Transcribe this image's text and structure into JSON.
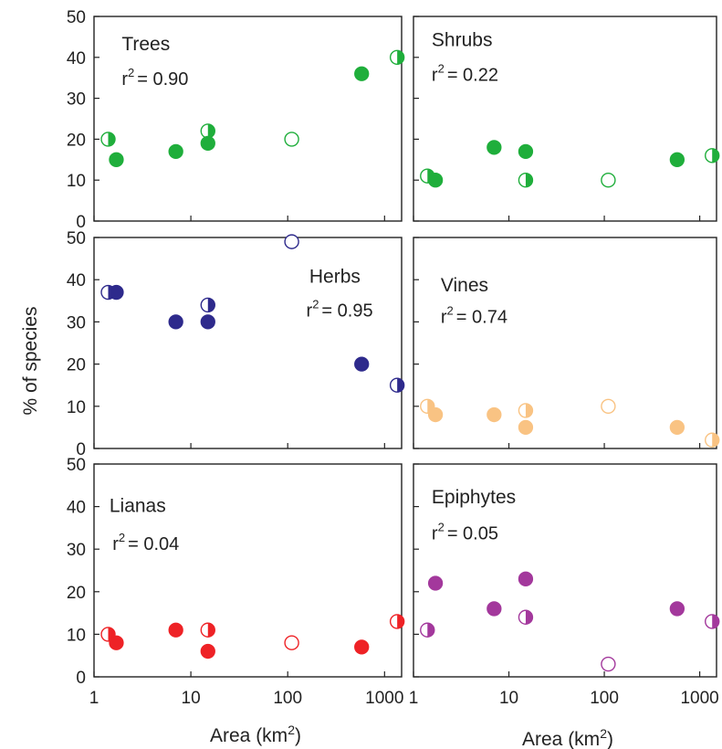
{
  "figure": {
    "ylabel": "% of species",
    "xlabel_left": "Area (km",
    "xlabel_right": "Area (km",
    "xlabel_superscript": "2",
    "xlabel_close": ")"
  },
  "chart_data": [
    {
      "type": "scatter",
      "title": "Trees",
      "r2_label": "r",
      "r2_superscript": "2",
      "r2_value": "= 0.90",
      "color": "#1fae3b",
      "xscale": "log",
      "xlim": [
        1,
        1500
      ],
      "ylim": [
        0,
        50
      ],
      "xticks": [
        "1",
        "10",
        "100",
        "1000"
      ],
      "yticks": [
        "0",
        "10",
        "20",
        "30",
        "40",
        "50"
      ],
      "show_xtick_labels": false,
      "show_ytick_labels": true,
      "points": [
        {
          "x": 1.4,
          "y": 20,
          "fill": "half"
        },
        {
          "x": 1.7,
          "y": 15,
          "fill": "full"
        },
        {
          "x": 7,
          "y": 17,
          "fill": "full"
        },
        {
          "x": 15,
          "y": 22,
          "fill": "half"
        },
        {
          "x": 15,
          "y": 19,
          "fill": "full"
        },
        {
          "x": 110,
          "y": 20,
          "fill": "open"
        },
        {
          "x": 580,
          "y": 36,
          "fill": "full"
        },
        {
          "x": 1350,
          "y": 40,
          "fill": "half"
        }
      ]
    },
    {
      "type": "scatter",
      "title": "Shrubs",
      "r2_label": "r",
      "r2_superscript": "2",
      "r2_value": "= 0.22",
      "color": "#1fae3b",
      "xscale": "log",
      "xlim": [
        1,
        1500
      ],
      "ylim": [
        0,
        50
      ],
      "xticks": [
        "1",
        "10",
        "100",
        "1000"
      ],
      "yticks": [
        "0",
        "10",
        "20",
        "30",
        "40",
        "50"
      ],
      "show_xtick_labels": false,
      "show_ytick_labels": false,
      "points": [
        {
          "x": 1.4,
          "y": 11,
          "fill": "half"
        },
        {
          "x": 1.7,
          "y": 10,
          "fill": "full"
        },
        {
          "x": 7,
          "y": 18,
          "fill": "full"
        },
        {
          "x": 15,
          "y": 17,
          "fill": "full"
        },
        {
          "x": 15,
          "y": 10,
          "fill": "half"
        },
        {
          "x": 110,
          "y": 10,
          "fill": "open"
        },
        {
          "x": 580,
          "y": 15,
          "fill": "full"
        },
        {
          "x": 1350,
          "y": 16,
          "fill": "half"
        }
      ]
    },
    {
      "type": "scatter",
      "title": "Herbs",
      "r2_label": "r",
      "r2_superscript": "2",
      "r2_value": "= 0.95",
      "color": "#2e2a8c",
      "xscale": "log",
      "xlim": [
        1,
        1500
      ],
      "ylim": [
        0,
        50
      ],
      "xticks": [
        "1",
        "10",
        "100",
        "1000"
      ],
      "yticks": [
        "0",
        "10",
        "20",
        "30",
        "40",
        "50"
      ],
      "show_xtick_labels": false,
      "show_ytick_labels": true,
      "points": [
        {
          "x": 1.4,
          "y": 37,
          "fill": "half"
        },
        {
          "x": 1.7,
          "y": 37,
          "fill": "full"
        },
        {
          "x": 7,
          "y": 30,
          "fill": "full"
        },
        {
          "x": 15,
          "y": 34,
          "fill": "half"
        },
        {
          "x": 15,
          "y": 30,
          "fill": "full"
        },
        {
          "x": 110,
          "y": 49,
          "fill": "open"
        },
        {
          "x": 580,
          "y": 20,
          "fill": "full"
        },
        {
          "x": 1350,
          "y": 15,
          "fill": "half"
        }
      ]
    },
    {
      "type": "scatter",
      "title": "Vines",
      "r2_label": "r",
      "r2_superscript": "2",
      "r2_value": "= 0.74",
      "color": "#f9c383",
      "xscale": "log",
      "xlim": [
        1,
        1500
      ],
      "ylim": [
        0,
        50
      ],
      "xticks": [
        "1",
        "10",
        "100",
        "1000"
      ],
      "yticks": [
        "0",
        "10",
        "20",
        "30",
        "40",
        "50"
      ],
      "show_xtick_labels": false,
      "show_ytick_labels": false,
      "points": [
        {
          "x": 1.4,
          "y": 10,
          "fill": "half"
        },
        {
          "x": 1.7,
          "y": 8,
          "fill": "full"
        },
        {
          "x": 7,
          "y": 8,
          "fill": "full"
        },
        {
          "x": 15,
          "y": 9,
          "fill": "half"
        },
        {
          "x": 15,
          "y": 5,
          "fill": "full"
        },
        {
          "x": 110,
          "y": 10,
          "fill": "open"
        },
        {
          "x": 580,
          "y": 5,
          "fill": "full"
        },
        {
          "x": 1350,
          "y": 2,
          "fill": "half"
        }
      ]
    },
    {
      "type": "scatter",
      "title": "Lianas",
      "r2_label": "r",
      "r2_superscript": "2",
      "r2_value": "= 0.04",
      "color": "#ee2226",
      "xscale": "log",
      "xlim": [
        1,
        1500
      ],
      "ylim": [
        0,
        50
      ],
      "xticks": [
        "1",
        "10",
        "100",
        "1000"
      ],
      "yticks": [
        "0",
        "10",
        "20",
        "30",
        "40",
        "50"
      ],
      "show_xtick_labels": true,
      "show_ytick_labels": true,
      "points": [
        {
          "x": 1.4,
          "y": 10,
          "fill": "half"
        },
        {
          "x": 1.7,
          "y": 8,
          "fill": "full"
        },
        {
          "x": 7,
          "y": 11,
          "fill": "full"
        },
        {
          "x": 15,
          "y": 11,
          "fill": "half"
        },
        {
          "x": 15,
          "y": 6,
          "fill": "full"
        },
        {
          "x": 110,
          "y": 8,
          "fill": "open"
        },
        {
          "x": 580,
          "y": 7,
          "fill": "full"
        },
        {
          "x": 1350,
          "y": 13,
          "fill": "half"
        }
      ]
    },
    {
      "type": "scatter",
      "title": "Epiphytes",
      "r2_label": "r",
      "r2_superscript": "2",
      "r2_value": "= 0.05",
      "color": "#a3389c",
      "xscale": "log",
      "xlim": [
        1,
        1500
      ],
      "ylim": [
        0,
        50
      ],
      "xticks": [
        "1",
        "10",
        "100",
        "1000"
      ],
      "yticks": [
        "0",
        "10",
        "20",
        "30",
        "40",
        "50"
      ],
      "show_xtick_labels": true,
      "show_ytick_labels": false,
      "points": [
        {
          "x": 1.4,
          "y": 11,
          "fill": "half"
        },
        {
          "x": 1.7,
          "y": 22,
          "fill": "full"
        },
        {
          "x": 7,
          "y": 16,
          "fill": "full"
        },
        {
          "x": 15,
          "y": 23,
          "fill": "full"
        },
        {
          "x": 15,
          "y": 14,
          "fill": "half"
        },
        {
          "x": 110,
          "y": 3,
          "fill": "open"
        },
        {
          "x": 580,
          "y": 16,
          "fill": "full"
        },
        {
          "x": 1350,
          "y": 13,
          "fill": "half"
        }
      ]
    }
  ]
}
